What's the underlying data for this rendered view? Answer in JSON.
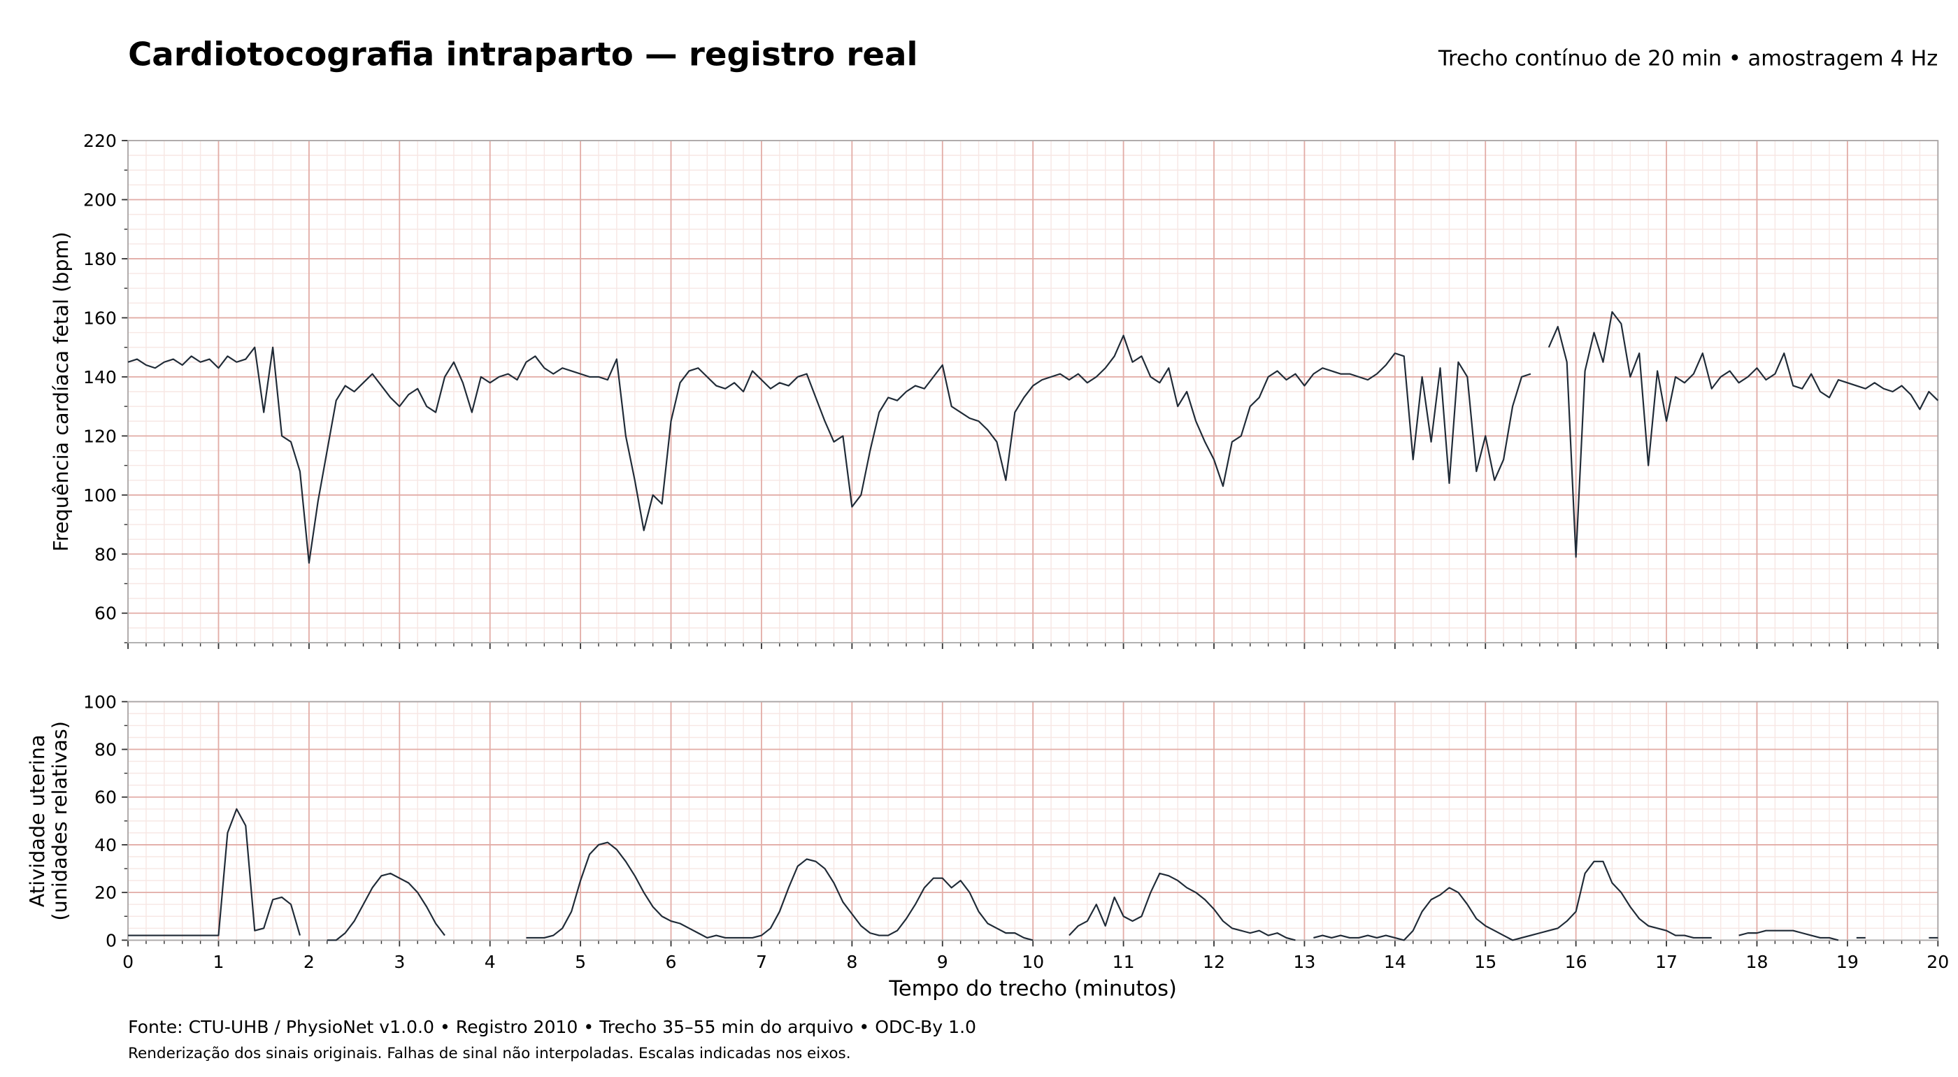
{
  "title": "Cardiotocografia intraparto — registro real",
  "subtitle": "Trecho contínuo de 20 min • amostragem 4 Hz",
  "source": "Fonte: CTU-UHB / PhysioNet v1.0.0 • Registro 2010 • Trecho 35–55 min do arquivo • ODC-By 1.0",
  "note": "Renderização dos sinais originais. Falhas de sinal não interpoladas. Escalas indicadas nos eixos.",
  "chart_data": [
    {
      "type": "line",
      "ylabel": "Frequência cardíaca fetal (bpm)",
      "color": "#1f2a36",
      "xlim": [
        0,
        20
      ],
      "xticks": [
        0,
        1,
        2,
        3,
        4,
        5,
        6,
        7,
        8,
        9,
        10,
        11,
        12,
        13,
        14,
        15,
        16,
        17,
        18,
        19,
        20
      ],
      "show_xtick_labels": false,
      "ylim": [
        50,
        220
      ],
      "yticks": [
        60,
        80,
        100,
        120,
        140,
        160,
        180,
        200,
        220
      ],
      "grid": true,
      "minor_x_per_major": 5,
      "minor_y_per_major": 4,
      "x": [
        0,
        0.1,
        0.2,
        0.3,
        0.4,
        0.5,
        0.6,
        0.7,
        0.8,
        0.9,
        1,
        1.1,
        1.2,
        1.3,
        1.4,
        1.5,
        1.6,
        1.7,
        1.8,
        1.9,
        2,
        2.1,
        2.2,
        2.3,
        2.4,
        2.5,
        2.6,
        2.7,
        2.8,
        2.9,
        3,
        3.1,
        3.2,
        3.3,
        3.4,
        3.5,
        3.6,
        3.7,
        3.8,
        3.9,
        4,
        4.1,
        4.2,
        4.3,
        4.4,
        4.5,
        4.6,
        4.7,
        4.8,
        4.9,
        5,
        5.1,
        5.2,
        5.3,
        5.4,
        5.5,
        5.6,
        5.7,
        5.8,
        5.9,
        6,
        6.1,
        6.2,
        6.3,
        6.4,
        6.5,
        6.6,
        6.7,
        6.8,
        6.9,
        7,
        7.1,
        7.2,
        7.3,
        7.4,
        7.5,
        7.6,
        7.7,
        7.8,
        7.9,
        8,
        8.1,
        8.2,
        8.3,
        8.4,
        8.5,
        8.6,
        8.7,
        8.8,
        8.9,
        9,
        9.1,
        9.2,
        9.3,
        9.4,
        9.5,
        9.6,
        9.7,
        9.8,
        9.9,
        10,
        10.1,
        10.2,
        10.3,
        10.4,
        10.5,
        10.6,
        10.7,
        10.8,
        10.9,
        11,
        11.1,
        11.2,
        11.3,
        11.4,
        11.5,
        11.6,
        11.7,
        11.8,
        11.9,
        12,
        12.1,
        12.2,
        12.3,
        12.4,
        12.5,
        12.6,
        12.7,
        12.8,
        12.9,
        13,
        13.1,
        13.2,
        13.3,
        13.4,
        13.5,
        13.6,
        13.7,
        13.8,
        13.9,
        14,
        14.1,
        14.2,
        14.3,
        14.4,
        14.5,
        14.6,
        14.7,
        14.8,
        14.9,
        15,
        15.1,
        15.2,
        15.3,
        15.4,
        15.5,
        15.6,
        15.7,
        15.8,
        15.9,
        16,
        16.1,
        16.2,
        16.3,
        16.4,
        16.5,
        16.6,
        16.7,
        16.8,
        16.9,
        17,
        17.1,
        17.2,
        17.3,
        17.4,
        17.5,
        17.6,
        17.7,
        17.8,
        17.9,
        18,
        18.1,
        18.2,
        18.3,
        18.4,
        18.5,
        18.6,
        18.7,
        18.8,
        18.9,
        19,
        19.1,
        19.2,
        19.3,
        19.4,
        19.5,
        19.6,
        19.7,
        19.8,
        19.9,
        20
      ],
      "values": [
        145,
        146,
        144,
        143,
        145,
        146,
        144,
        147,
        145,
        146,
        143,
        147,
        145,
        146,
        150,
        128,
        150,
        120,
        118,
        108,
        77,
        98,
        115,
        132,
        137,
        135,
        138,
        141,
        137,
        133,
        130,
        134,
        136,
        130,
        128,
        140,
        145,
        138,
        128,
        140,
        138,
        140,
        141,
        139,
        145,
        147,
        143,
        141,
        143,
        142,
        141,
        140,
        140,
        139,
        146,
        120,
        105,
        88,
        100,
        97,
        125,
        138,
        142,
        143,
        140,
        137,
        136,
        138,
        135,
        142,
        139,
        136,
        138,
        137,
        140,
        141,
        133,
        125,
        118,
        120,
        96,
        100,
        115,
        128,
        133,
        132,
        135,
        137,
        136,
        140,
        144,
        130,
        128,
        126,
        125,
        122,
        118,
        105,
        128,
        133,
        137,
        139,
        140,
        141,
        139,
        141,
        138,
        140,
        143,
        147,
        154,
        145,
        147,
        140,
        138,
        143,
        130,
        135,
        125,
        118,
        112,
        103,
        118,
        120,
        130,
        133,
        140,
        142,
        139,
        141,
        137,
        141,
        143,
        142,
        141,
        141,
        140,
        139,
        141,
        144,
        148,
        147,
        112,
        140,
        118,
        143,
        104,
        145,
        140,
        108,
        120,
        105,
        112,
        130,
        140,
        141,
        null,
        150,
        157,
        145,
        79,
        142,
        155,
        145,
        162,
        158,
        140,
        148,
        110,
        142,
        125,
        140,
        138,
        141,
        148,
        136,
        140,
        142,
        138,
        140,
        143,
        139,
        141,
        148,
        137,
        136,
        141,
        135,
        133,
        139,
        138,
        137,
        136,
        138,
        136,
        135,
        137,
        134,
        129,
        135,
        132
      ]
    },
    {
      "type": "line",
      "ylabel": "Atividade uterina\n(unidades relativas)",
      "xlabel": "Tempo do trecho (minutos)",
      "color": "#1f2a36",
      "xlim": [
        0,
        20
      ],
      "xticks": [
        0,
        1,
        2,
        3,
        4,
        5,
        6,
        7,
        8,
        9,
        10,
        11,
        12,
        13,
        14,
        15,
        16,
        17,
        18,
        19,
        20
      ],
      "show_xtick_labels": true,
      "ylim": [
        0,
        100
      ],
      "yticks": [
        0,
        20,
        40,
        60,
        80,
        100
      ],
      "grid": true,
      "minor_x_per_major": 5,
      "minor_y_per_major": 4,
      "x": [
        0,
        0.1,
        0.2,
        0.3,
        0.4,
        0.5,
        0.6,
        0.7,
        0.8,
        0.9,
        1,
        1.1,
        1.2,
        1.3,
        1.4,
        1.5,
        1.6,
        1.7,
        1.8,
        1.9,
        2,
        2.1,
        2.2,
        2.3,
        2.4,
        2.5,
        2.6,
        2.7,
        2.8,
        2.9,
        3,
        3.1,
        3.2,
        3.3,
        3.4,
        3.5,
        3.6,
        3.7,
        3.8,
        3.9,
        4,
        4.1,
        4.2,
        4.3,
        4.4,
        4.5,
        4.6,
        4.7,
        4.8,
        4.9,
        5,
        5.1,
        5.2,
        5.3,
        5.4,
        5.5,
        5.6,
        5.7,
        5.8,
        5.9,
        6,
        6.1,
        6.2,
        6.3,
        6.4,
        6.5,
        6.6,
        6.7,
        6.8,
        6.9,
        7,
        7.1,
        7.2,
        7.3,
        7.4,
        7.5,
        7.6,
        7.7,
        7.8,
        7.9,
        8,
        8.1,
        8.2,
        8.3,
        8.4,
        8.5,
        8.6,
        8.7,
        8.8,
        8.9,
        9,
        9.1,
        9.2,
        9.3,
        9.4,
        9.5,
        9.6,
        9.7,
        9.8,
        9.9,
        10,
        10.1,
        10.2,
        10.3,
        10.4,
        10.5,
        10.6,
        10.7,
        10.8,
        10.9,
        11,
        11.1,
        11.2,
        11.3,
        11.4,
        11.5,
        11.6,
        11.7,
        11.8,
        11.9,
        12,
        12.1,
        12.2,
        12.3,
        12.4,
        12.5,
        12.6,
        12.7,
        12.8,
        12.9,
        13,
        13.1,
        13.2,
        13.3,
        13.4,
        13.5,
        13.6,
        13.7,
        13.8,
        13.9,
        14,
        14.1,
        14.2,
        14.3,
        14.4,
        14.5,
        14.6,
        14.7,
        14.8,
        14.9,
        15,
        15.1,
        15.2,
        15.3,
        15.4,
        15.5,
        15.6,
        15.7,
        15.8,
        15.9,
        16,
        16.1,
        16.2,
        16.3,
        16.4,
        16.5,
        16.6,
        16.7,
        16.8,
        16.9,
        17,
        17.1,
        17.2,
        17.3,
        17.4,
        17.5,
        17.6,
        17.7,
        17.8,
        17.9,
        18,
        18.1,
        18.2,
        18.3,
        18.4,
        18.5,
        18.6,
        18.7,
        18.8,
        18.9,
        19,
        19.1,
        19.2,
        19.3,
        19.4,
        19.5,
        19.6,
        19.7,
        19.8,
        19.9,
        20
      ],
      "values": [
        2,
        2,
        2,
        2,
        2,
        2,
        2,
        2,
        2,
        2,
        2,
        45,
        55,
        48,
        4,
        5,
        17,
        18,
        15,
        2,
        null,
        null,
        0,
        0,
        3,
        8,
        15,
        22,
        27,
        28,
        26,
        24,
        20,
        14,
        7,
        2,
        null,
        null,
        null,
        null,
        null,
        null,
        null,
        null,
        1,
        1,
        1,
        2,
        5,
        12,
        25,
        36,
        40,
        41,
        38,
        33,
        27,
        20,
        14,
        10,
        8,
        7,
        5,
        3,
        1,
        2,
        1,
        1,
        1,
        1,
        2,
        5,
        12,
        22,
        31,
        34,
        33,
        30,
        24,
        16,
        11,
        6,
        3,
        2,
        2,
        4,
        9,
        15,
        22,
        26,
        26,
        22,
        25,
        20,
        12,
        7,
        5,
        3,
        3,
        1,
        0,
        null,
        null,
        null,
        2,
        6,
        8,
        15,
        6,
        18,
        10,
        8,
        10,
        20,
        28,
        27,
        25,
        22,
        20,
        17,
        13,
        8,
        5,
        4,
        3,
        4,
        2,
        3,
        1,
        0,
        null,
        1,
        2,
        1,
        2,
        1,
        1,
        2,
        1,
        2,
        1,
        0,
        4,
        12,
        17,
        19,
        22,
        20,
        15,
        9,
        6,
        4,
        2,
        0,
        1,
        2,
        3,
        4,
        5,
        8,
        12,
        28,
        33,
        33,
        24,
        20,
        14,
        9,
        6,
        5,
        4,
        2,
        2,
        1,
        1,
        1,
        null,
        null,
        2,
        3,
        3,
        4,
        4,
        4,
        4,
        3,
        2,
        1,
        1,
        0,
        null,
        1,
        1,
        null,
        null,
        null,
        null,
        null,
        null,
        1,
        1
      ]
    }
  ]
}
